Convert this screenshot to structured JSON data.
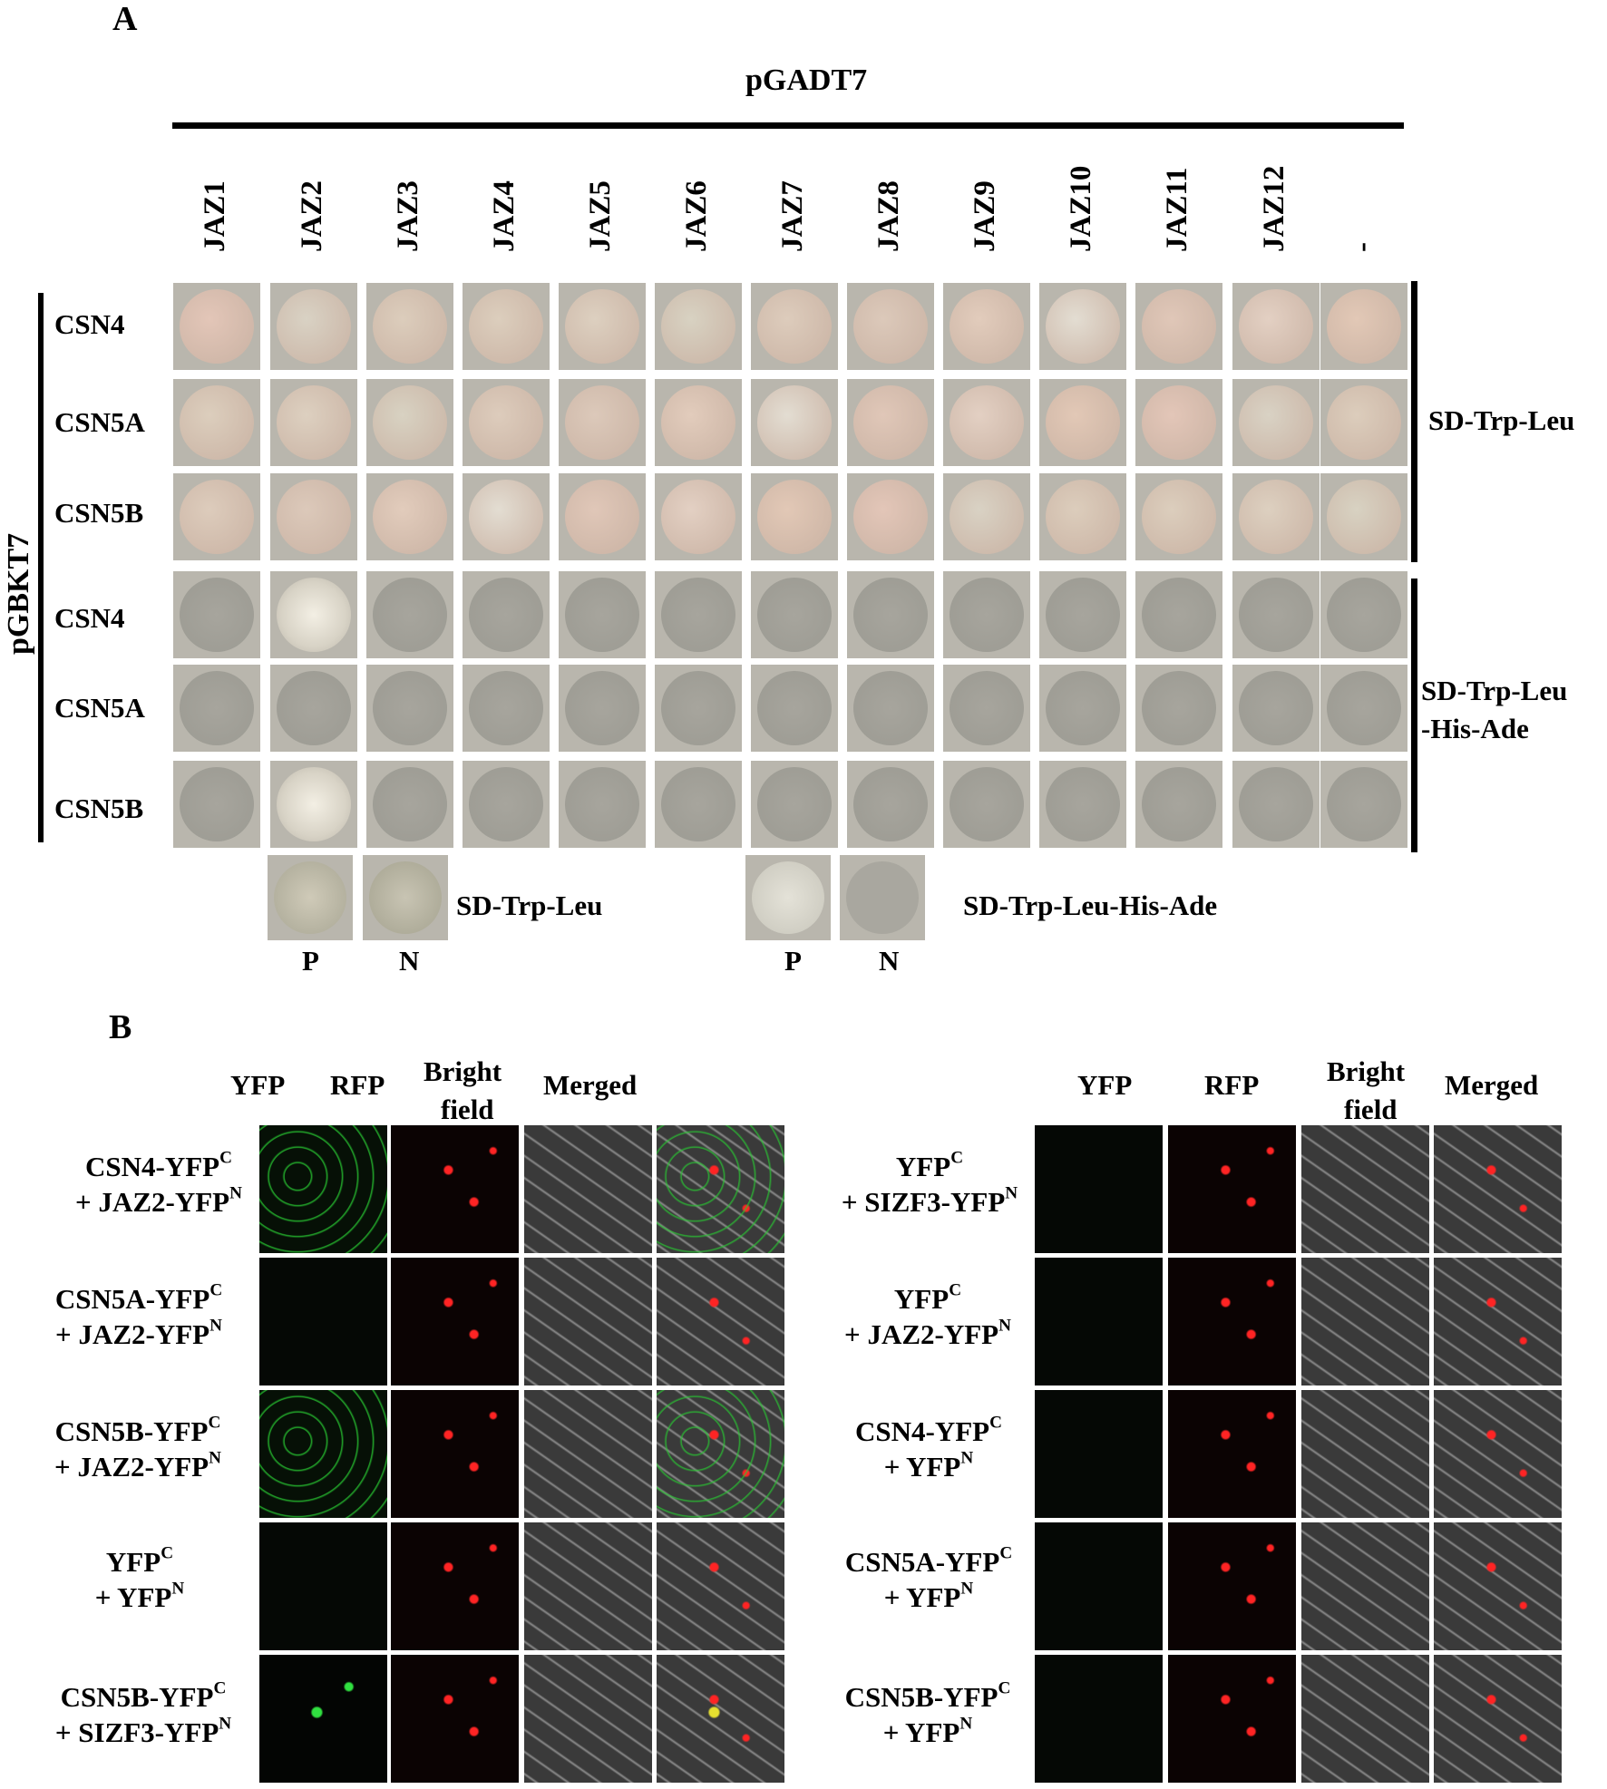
{
  "panel_a": {
    "letter": "A",
    "top_vector": "pGADT7",
    "side_vector": "pGBKT7",
    "columns": [
      "JAZ1",
      "JAZ2",
      "JAZ3",
      "JAZ4",
      "JAZ5",
      "JAZ6",
      "JAZ7",
      "JAZ8",
      "JAZ9",
      "JAZ10",
      "JAZ11",
      "JAZ12",
      "-"
    ],
    "rows": [
      "CSN4",
      "CSN5A",
      "CSN5B",
      "CSN4",
      "CSN5A",
      "CSN5B"
    ],
    "media_top": "SD-Trp-Leu",
    "media_bottom_line1": "SD-Trp-Leu",
    "media_bottom_line2": "-His-Ade",
    "controls": {
      "left_medium": "SD-Trp-Leu",
      "right_medium": "SD-Trp-Leu-His-Ade",
      "positive": "P",
      "negative": "N"
    }
  },
  "panel_b": {
    "letter": "B",
    "col_yfp": "YFP",
    "col_rfp": "RFP",
    "col_bright_1": "Bright",
    "col_bright_2": "field",
    "col_merged": "Merged",
    "left_rows": [
      {
        "l1": "CSN4-YFP",
        "s1": "C",
        "l2": "+ JAZ2-YFP",
        "s2": "N"
      },
      {
        "l1": "CSN5A-YFP",
        "s1": "C",
        "l2": "+ JAZ2-YFP",
        "s2": "N"
      },
      {
        "l1": "CSN5B-YFP",
        "s1": "C",
        "l2": "+ JAZ2-YFP",
        "s2": "N"
      },
      {
        "l1": "YFP",
        "s1": "C",
        "l2": "+ YFP",
        "s2": "N"
      },
      {
        "l1": "CSN5B-YFP",
        "s1": "C",
        "l2": "+ SIZF3-YFP",
        "s2": "N"
      }
    ],
    "right_rows": [
      {
        "l1": "YFP",
        "s1": "C",
        "l2": "+ SIZF3-YFP",
        "s2": "N"
      },
      {
        "l1": "YFP",
        "s1": "C",
        "l2": "+ JAZ2-YFP",
        "s2": "N"
      },
      {
        "l1": "CSN4-YFP",
        "s1": "C",
        "l2": "+ YFP",
        "s2": "N"
      },
      {
        "l1": "CSN5A-YFP",
        "s1": "C",
        "l2": "+ YFP",
        "s2": "N"
      },
      {
        "l1": "CSN5B-YFP",
        "s1": "C",
        "l2": "+ YFP",
        "s2": "N"
      }
    ]
  },
  "colors": {
    "plate_bg": "#b9b6ad",
    "colony_selective": "#e8c6b3",
    "colony_quad": "#9b9a92",
    "yfp_signal": "#27d43a",
    "rfp_signal": "#ff2020"
  }
}
